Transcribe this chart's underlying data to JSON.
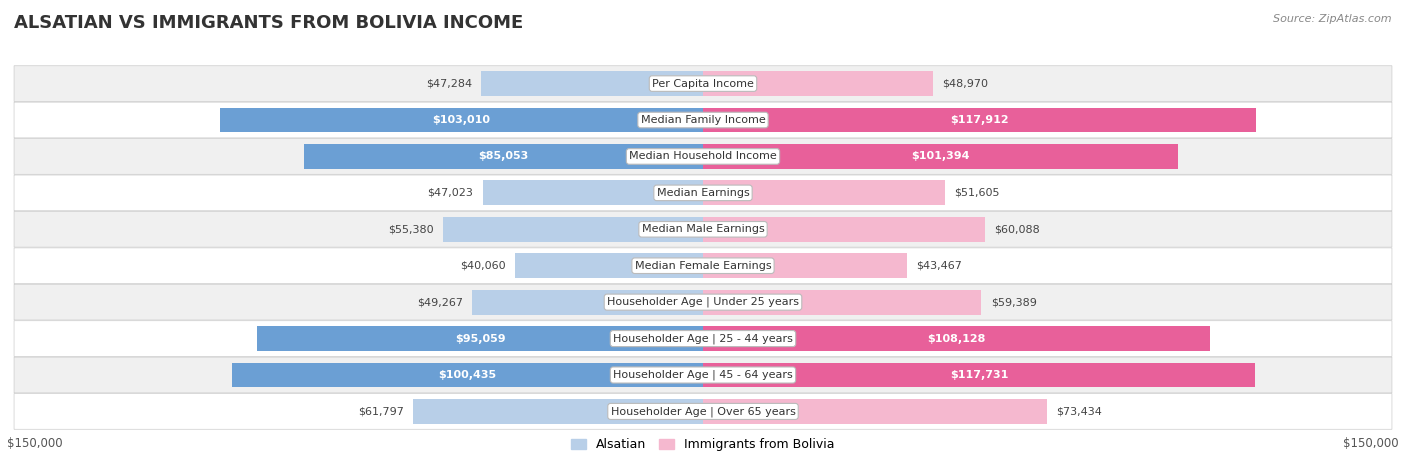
{
  "title": "ALSATIAN VS IMMIGRANTS FROM BOLIVIA INCOME",
  "source": "Source: ZipAtlas.com",
  "categories": [
    "Per Capita Income",
    "Median Family Income",
    "Median Household Income",
    "Median Earnings",
    "Median Male Earnings",
    "Median Female Earnings",
    "Householder Age | Under 25 years",
    "Householder Age | 25 - 44 years",
    "Householder Age | 45 - 64 years",
    "Householder Age | Over 65 years"
  ],
  "alsatian_values": [
    47284,
    103010,
    85053,
    47023,
    55380,
    40060,
    49267,
    95059,
    100435,
    61797
  ],
  "bolivia_values": [
    48970,
    117912,
    101394,
    51605,
    60088,
    43467,
    59389,
    108128,
    117731,
    73434
  ],
  "alsatian_color_light": "#b8cfe8",
  "alsatian_color_dark": "#6b9fd4",
  "bolivia_color_light": "#f5b8cf",
  "bolivia_color_dark": "#e8609a",
  "alsatian_label": "Alsatian",
  "bolivia_label": "Immigrants from Bolivia",
  "max_value": 150000,
  "x_label_left": "$150,000",
  "x_label_right": "$150,000",
  "bg_color": "#ffffff",
  "row_bg_odd": "#f0f0f0",
  "row_bg_even": "#ffffff",
  "title_fontsize": 13,
  "label_fontsize": 8,
  "value_fontsize": 8,
  "alsatian_labels": [
    "$47,284",
    "$103,010",
    "$85,053",
    "$47,023",
    "$55,380",
    "$40,060",
    "$49,267",
    "$95,059",
    "$100,435",
    "$61,797"
  ],
  "bolivia_labels": [
    "$48,970",
    "$117,912",
    "$101,394",
    "$51,605",
    "$60,088",
    "$43,467",
    "$59,389",
    "$108,128",
    "$117,731",
    "$73,434"
  ],
  "high_value_threshold": 75000
}
